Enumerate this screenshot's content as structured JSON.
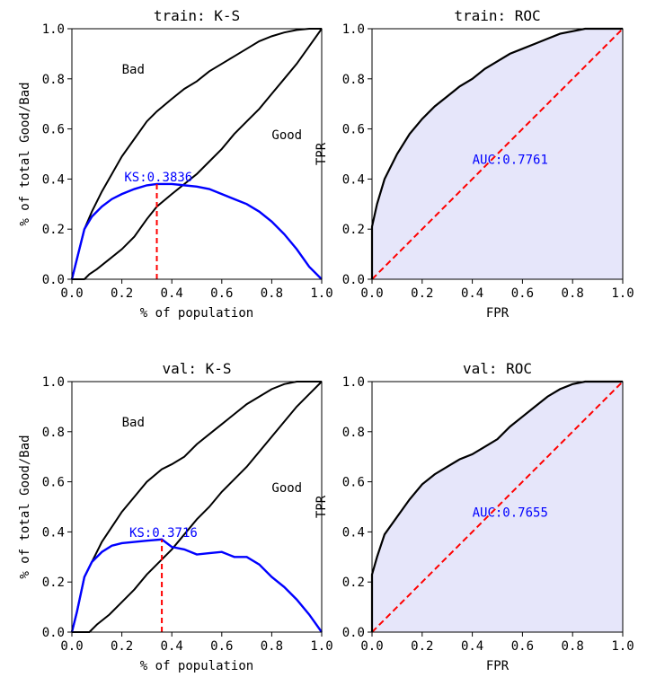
{
  "colors": {
    "curve": "#000000",
    "ks": "#0000ff",
    "cutoff": "#ff0000",
    "diagonal": "#ff0000",
    "auc_fill": "#e6e6fa"
  },
  "chart_data": [
    {
      "type": "line",
      "title": "train: K-S",
      "xlabel": "% of population",
      "ylabel": "% of total Good/Bad",
      "xlim": [
        0,
        1
      ],
      "ylim": [
        0,
        1
      ],
      "xticks": [
        "0.0",
        "0.2",
        "0.4",
        "0.6",
        "0.8",
        "1.0"
      ],
      "yticks": [
        "0.0",
        "0.2",
        "0.4",
        "0.6",
        "0.8",
        "1.0"
      ],
      "series": [
        {
          "name": "Bad",
          "x": [
            0,
            0.02,
            0.05,
            0.08,
            0.12,
            0.16,
            0.2,
            0.25,
            0.3,
            0.34,
            0.4,
            0.45,
            0.5,
            0.55,
            0.6,
            0.65,
            0.7,
            0.75,
            0.8,
            0.85,
            0.9,
            0.95,
            1.0
          ],
          "values": [
            0,
            0.08,
            0.2,
            0.27,
            0.35,
            0.42,
            0.49,
            0.56,
            0.63,
            0.67,
            0.72,
            0.76,
            0.79,
            0.83,
            0.86,
            0.89,
            0.92,
            0.95,
            0.97,
            0.985,
            0.995,
            1.0,
            1.0
          ]
        },
        {
          "name": "Good",
          "x": [
            0,
            0.05,
            0.07,
            0.1,
            0.15,
            0.2,
            0.25,
            0.3,
            0.34,
            0.4,
            0.45,
            0.5,
            0.55,
            0.6,
            0.65,
            0.7,
            0.75,
            0.8,
            0.85,
            0.9,
            0.95,
            1.0
          ],
          "values": [
            0,
            0,
            0.02,
            0.04,
            0.08,
            0.12,
            0.17,
            0.24,
            0.29,
            0.34,
            0.38,
            0.42,
            0.47,
            0.52,
            0.58,
            0.63,
            0.68,
            0.74,
            0.8,
            0.86,
            0.93,
            1.0
          ]
        },
        {
          "name": "KS",
          "x": [
            0,
            0.02,
            0.05,
            0.08,
            0.12,
            0.16,
            0.2,
            0.25,
            0.3,
            0.34,
            0.4,
            0.45,
            0.5,
            0.55,
            0.6,
            0.65,
            0.7,
            0.75,
            0.8,
            0.85,
            0.9,
            0.95,
            1.0
          ],
          "values": [
            0,
            0.08,
            0.2,
            0.25,
            0.29,
            0.32,
            0.34,
            0.36,
            0.375,
            0.38,
            0.38,
            0.375,
            0.37,
            0.36,
            0.34,
            0.32,
            0.3,
            0.27,
            0.23,
            0.18,
            0.12,
            0.05,
            0
          ]
        }
      ],
      "annotations": {
        "bad_label": "Bad",
        "good_label": "Good",
        "ks_label": "KS:0.3836",
        "bad_pos": [
          0.2,
          0.82
        ],
        "good_pos": [
          0.8,
          0.56
        ],
        "ks_pos": [
          0.21,
          0.39
        ]
      },
      "ks_value": 0.3836,
      "ks_cutoff": {
        "x": 0.34,
        "y_low": 0.0,
        "y_high": 0.38
      }
    },
    {
      "type": "area",
      "title": "train: ROC",
      "xlabel": "FPR",
      "ylabel": "TPR",
      "xlim": [
        0,
        1
      ],
      "ylim": [
        0,
        1
      ],
      "xticks": [
        "0.0",
        "0.2",
        "0.4",
        "0.6",
        "0.8",
        "1.0"
      ],
      "yticks": [
        "0.0",
        "0.2",
        "0.4",
        "0.6",
        "0.8",
        "1.0"
      ],
      "series": [
        {
          "name": "ROC",
          "x": [
            0,
            0,
            0.02,
            0.05,
            0.1,
            0.15,
            0.2,
            0.25,
            0.3,
            0.35,
            0.4,
            0.45,
            0.5,
            0.55,
            0.6,
            0.65,
            0.7,
            0.75,
            0.8,
            0.85,
            0.9,
            1.0
          ],
          "values": [
            0,
            0.21,
            0.3,
            0.4,
            0.5,
            0.58,
            0.64,
            0.69,
            0.73,
            0.77,
            0.8,
            0.84,
            0.87,
            0.9,
            0.92,
            0.94,
            0.96,
            0.98,
            0.99,
            1.0,
            1.0,
            1.0
          ]
        }
      ],
      "auc_label": "AUC:0.7761",
      "auc_pos": [
        0.4,
        0.46
      ],
      "auc_value": 0.7761
    },
    {
      "type": "line",
      "title": "val: K-S",
      "xlabel": "% of population",
      "ylabel": "% of total Good/Bad",
      "xlim": [
        0,
        1
      ],
      "ylim": [
        0,
        1
      ],
      "xticks": [
        "0.0",
        "0.2",
        "0.4",
        "0.6",
        "0.8",
        "1.0"
      ],
      "yticks": [
        "0.0",
        "0.2",
        "0.4",
        "0.6",
        "0.8",
        "1.0"
      ],
      "series": [
        {
          "name": "Bad",
          "x": [
            0,
            0.02,
            0.05,
            0.08,
            0.12,
            0.16,
            0.2,
            0.25,
            0.3,
            0.36,
            0.4,
            0.45,
            0.5,
            0.55,
            0.6,
            0.65,
            0.7,
            0.75,
            0.8,
            0.85,
            0.9,
            0.95,
            1.0
          ],
          "values": [
            0,
            0.08,
            0.22,
            0.28,
            0.36,
            0.42,
            0.48,
            0.54,
            0.6,
            0.65,
            0.67,
            0.7,
            0.75,
            0.79,
            0.83,
            0.87,
            0.91,
            0.94,
            0.97,
            0.99,
            1.0,
            1.0,
            1.0
          ]
        },
        {
          "name": "Good",
          "x": [
            0,
            0.07,
            0.1,
            0.15,
            0.2,
            0.25,
            0.3,
            0.36,
            0.4,
            0.45,
            0.5,
            0.55,
            0.6,
            0.65,
            0.7,
            0.75,
            0.8,
            0.85,
            0.9,
            0.95,
            1.0
          ],
          "values": [
            0,
            0,
            0.03,
            0.07,
            0.12,
            0.17,
            0.23,
            0.29,
            0.33,
            0.39,
            0.45,
            0.5,
            0.56,
            0.61,
            0.66,
            0.72,
            0.78,
            0.84,
            0.9,
            0.95,
            1.0
          ]
        },
        {
          "name": "KS",
          "x": [
            0,
            0.02,
            0.05,
            0.08,
            0.12,
            0.16,
            0.2,
            0.25,
            0.3,
            0.36,
            0.4,
            0.45,
            0.5,
            0.55,
            0.6,
            0.65,
            0.7,
            0.75,
            0.8,
            0.85,
            0.9,
            0.95,
            1.0
          ],
          "values": [
            0,
            0.08,
            0.22,
            0.28,
            0.32,
            0.345,
            0.355,
            0.36,
            0.365,
            0.37,
            0.34,
            0.33,
            0.31,
            0.315,
            0.32,
            0.3,
            0.3,
            0.27,
            0.22,
            0.18,
            0.13,
            0.07,
            0
          ]
        }
      ],
      "annotations": {
        "bad_label": "Bad",
        "good_label": "Good",
        "ks_label": "KS:0.3716",
        "bad_pos": [
          0.2,
          0.82
        ],
        "good_pos": [
          0.8,
          0.56
        ],
        "ks_pos": [
          0.23,
          0.38
        ]
      },
      "ks_value": 0.3716,
      "ks_cutoff": {
        "x": 0.36,
        "y_low": 0.0,
        "y_high": 0.37
      }
    },
    {
      "type": "area",
      "title": "val: ROC",
      "xlabel": "FPR",
      "ylabel": "TPR",
      "xlim": [
        0,
        1
      ],
      "ylim": [
        0,
        1
      ],
      "xticks": [
        "0.0",
        "0.2",
        "0.4",
        "0.6",
        "0.8",
        "1.0"
      ],
      "yticks": [
        "0.0",
        "0.2",
        "0.4",
        "0.6",
        "0.8",
        "1.0"
      ],
      "series": [
        {
          "name": "ROC",
          "x": [
            0,
            0,
            0.02,
            0.05,
            0.1,
            0.15,
            0.2,
            0.25,
            0.3,
            0.35,
            0.4,
            0.45,
            0.5,
            0.55,
            0.6,
            0.65,
            0.7,
            0.75,
            0.8,
            0.85,
            0.9,
            1.0
          ],
          "values": [
            0,
            0.23,
            0.3,
            0.39,
            0.46,
            0.53,
            0.59,
            0.63,
            0.66,
            0.69,
            0.71,
            0.74,
            0.77,
            0.82,
            0.86,
            0.9,
            0.94,
            0.97,
            0.99,
            1.0,
            1.0,
            1.0
          ]
        }
      ],
      "auc_label": "AUC:0.7655",
      "auc_pos": [
        0.4,
        0.46
      ],
      "auc_value": 0.7655
    }
  ]
}
